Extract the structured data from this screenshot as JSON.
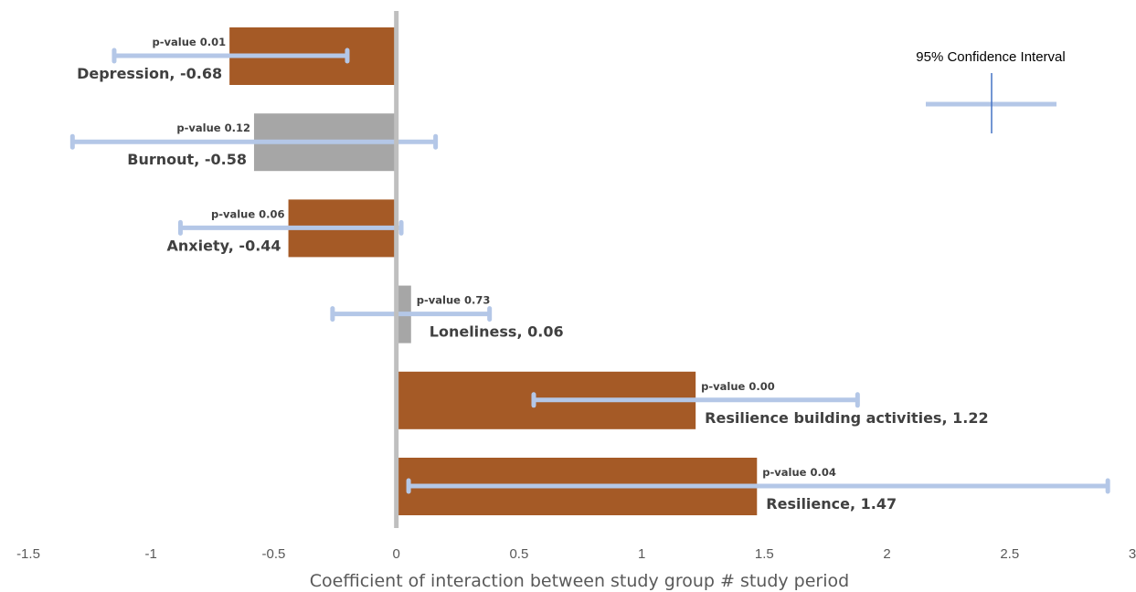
{
  "chart_data": {
    "type": "bar",
    "orientation": "horizontal",
    "xlabel": "Coefficient of interaction between study group # study period",
    "ylabel": "",
    "xlim": [
      -1.5,
      3
    ],
    "xticks": [
      "-1.5",
      "-1",
      "-0.5",
      "0",
      "0.5",
      "1",
      "1.5",
      "2",
      "2.5",
      "3"
    ],
    "grid": false,
    "legend": {
      "title": "95% Confidence Interval",
      "placement": "top-right",
      "color": "#b4c7e7",
      "marker_color": "#4472c4"
    },
    "colors": {
      "significant": "#a55a26",
      "not_significant": "#a6a6a6",
      "error_bar": "#b4c7e7",
      "zero_line": "#bfbfbf"
    },
    "bars": [
      {
        "name": "Depression",
        "label": "Depression, -0.68",
        "value": -0.68,
        "p_label": "p-value 0.01",
        "ci": [
          -1.15,
          -0.2
        ],
        "significant": true
      },
      {
        "name": "Burnout",
        "label": "Burnout, -0.58",
        "value": -0.58,
        "p_label": "p-value 0.12",
        "ci": [
          -1.32,
          0.16
        ],
        "significant": false
      },
      {
        "name": "Anxiety",
        "label": "Anxiety, -0.44",
        "value": -0.44,
        "p_label": "p-value 0.06",
        "ci": [
          -0.88,
          0.02
        ],
        "significant": true
      },
      {
        "name": "Loneliness",
        "label": "Loneliness, 0.06",
        "value": 0.06,
        "p_label": "p-value 0.73",
        "ci": [
          -0.26,
          0.38
        ],
        "significant": false
      },
      {
        "name": "Resilience building activities",
        "label": "Resilience building activities, 1.22",
        "value": 1.22,
        "p_label": "p-value 0.00",
        "ci": [
          0.56,
          1.88
        ],
        "significant": true
      },
      {
        "name": "Resilience",
        "label": "Resilience, 1.47",
        "value": 1.47,
        "p_label": "p-value 0.04",
        "ci": [
          0.05,
          2.9
        ],
        "significant": true
      }
    ]
  }
}
